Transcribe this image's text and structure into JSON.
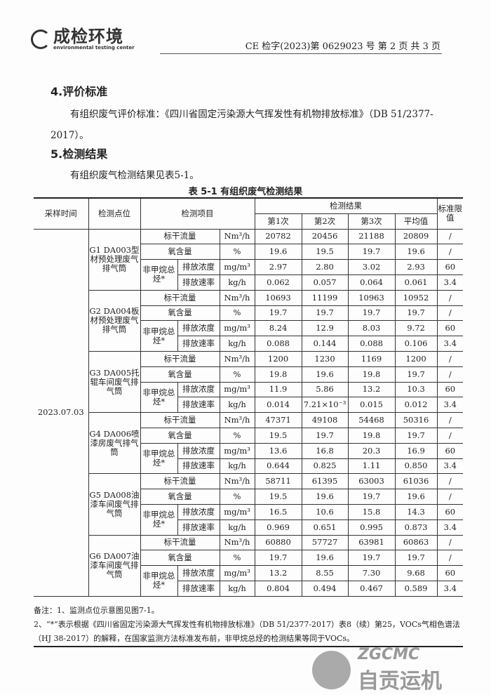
{
  "header": {
    "logo_cn": "成检环境",
    "logo_en": "environmental testing center",
    "doc_no": "CE 检字(2023)第 0629023 号 第 2 页 共 3 页"
  },
  "section4": {
    "title": "4.评价标准",
    "text": "有组织废气评价标准：《四川省固定污染源大气挥发性有机物排放标准》（DB 51/2377-2017）。"
  },
  "section5": {
    "title": "5.检测结果",
    "text": "有组织废气检测结果见表5-1。"
  },
  "table": {
    "caption": "表 5-1 有组织废气检测结果",
    "headers": {
      "time": "采样时间",
      "point": "检测点位",
      "item": "检测项目",
      "results": "检测结果",
      "r1": "第1次",
      "r2": "第2次",
      "r3": "第3次",
      "avg": "平均值",
      "limit": "标准限值"
    },
    "date": "2023.07.03",
    "labels": {
      "flow": "标干流量",
      "oxygen": "氧含量",
      "nmhc": "非甲烷总烃*",
      "conc": "排放浓度",
      "rate": "排放速率"
    },
    "units": {
      "flow": "Nm³/h",
      "oxygen": "%",
      "conc": "mg/m³",
      "rate": "kg/h"
    },
    "groups": [
      {
        "point": "G1 DA003型材预处理废气排气筒",
        "flow": [
          "20782",
          "20456",
          "21188",
          "20809",
          "/"
        ],
        "oxygen": [
          "19.6",
          "19.5",
          "19.7",
          "19.6",
          "/"
        ],
        "conc": [
          "2.97",
          "2.80",
          "3.02",
          "2.93",
          "60"
        ],
        "rate": [
          "0.062",
          "0.057",
          "0.064",
          "0.061",
          "3.4"
        ]
      },
      {
        "point": "G2 DA004板材预处理废气排气筒",
        "flow": [
          "10693",
          "11199",
          "10963",
          "10952",
          "/"
        ],
        "oxygen": [
          "19.7",
          "19.7",
          "19.7",
          "19.7",
          "/"
        ],
        "conc": [
          "8.24",
          "12.9",
          "8.03",
          "9.72",
          "60"
        ],
        "rate": [
          "0.088",
          "0.144",
          "0.088",
          "0.106",
          "3.4"
        ]
      },
      {
        "point": "G3 DA005托辊车间废气排气筒",
        "flow": [
          "1200",
          "1230",
          "1169",
          "1200",
          "/"
        ],
        "oxygen": [
          "19.8",
          "19.6",
          "19.8",
          "19.7",
          "/"
        ],
        "conc": [
          "11.9",
          "5.86",
          "13.2",
          "10.3",
          "60"
        ],
        "rate": [
          "0.014",
          "7.21×10⁻³",
          "0.015",
          "0.012",
          "3.4"
        ]
      },
      {
        "point": "G4 DA006喷漆房废气排气筒",
        "flow": [
          "47371",
          "49108",
          "54468",
          "50316",
          "/"
        ],
        "oxygen": [
          "19.5",
          "19.7",
          "19.8",
          "19.7",
          "/"
        ],
        "conc": [
          "13.6",
          "16.8",
          "20.3",
          "16.9",
          "60"
        ],
        "rate": [
          "0.644",
          "0.825",
          "1.11",
          "0.850",
          "3.4"
        ]
      },
      {
        "point": "G5 DA008油漆车间废气排气筒",
        "flow": [
          "58711",
          "61395",
          "63003",
          "61036",
          "/"
        ],
        "oxygen": [
          "19.5",
          "19.6",
          "19.7",
          "19.6",
          "/"
        ],
        "conc": [
          "16.5",
          "10.6",
          "15.8",
          "14.3",
          "60"
        ],
        "rate": [
          "0.969",
          "0.651",
          "0.995",
          "0.873",
          "3.4"
        ]
      },
      {
        "point": "G6 DA007油漆车间废气排气筒",
        "flow": [
          "60880",
          "57727",
          "63981",
          "60863",
          "/"
        ],
        "oxygen": [
          "19.7",
          "19.6",
          "19.7",
          "19.7",
          "/"
        ],
        "conc": [
          "13.2",
          "8.55",
          "7.30",
          "9.68",
          "60"
        ],
        "rate": [
          "0.804",
          "0.494",
          "0.467",
          "0.589",
          "3.4"
        ]
      }
    ]
  },
  "notes": [
    "备注：1、监测点位示意图见图7-1。",
    "2、“*”表示根据《四川省固定污染源大气挥发性有机物排放标准》（DB 51/2377-2017）表8（续）第25，VOCs气相色谱法（HJ 38-2017）的解释，在国家监测方法标准发布前，非甲烷总烃的检测结果等同于VOCs。"
  ],
  "watermark": {
    "brand_en": "ZGCMC",
    "brand_cn": "自贡运机"
  }
}
